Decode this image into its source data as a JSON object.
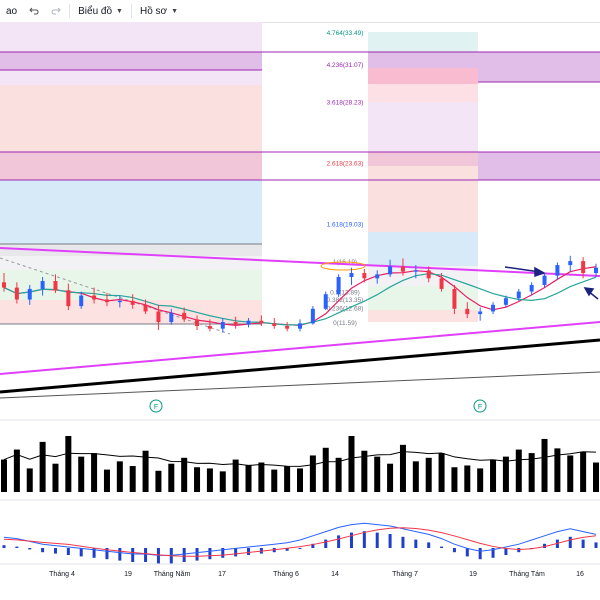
{
  "toolbar": {
    "cut_label": "ao",
    "undo_icon": "undo-icon",
    "redo_icon": "redo-icon",
    "chart_menu_label": "Biểu đồ",
    "profile_menu_label": "Hồ sơ"
  },
  "chart_data": {
    "type": "candlestick",
    "price_ylim": [
      8,
      36
    ],
    "fib_levels_right": [
      {
        "label": "4.764(33.49)",
        "value": 33.49,
        "color": "#089981"
      },
      {
        "label": "4.236(31.07)",
        "value": 31.07,
        "color": "#9c27b0"
      },
      {
        "label": "3.618(28.23)",
        "value": 28.23,
        "color": "#9c27b0"
      },
      {
        "label": "2.618(23.63)",
        "value": 23.63,
        "color": "#f23645"
      },
      {
        "label": "1.618(19.03)",
        "value": 19.03,
        "color": "#2962ff"
      },
      {
        "label": "1(16.19)",
        "value": 16.19,
        "color": "#787b86"
      },
      {
        "label": "0.5(13.89)",
        "value": 13.89,
        "color": "#787b86"
      },
      {
        "label": "0.382(13.35)",
        "value": 13.35,
        "color": "#787b86"
      },
      {
        "label": "0.236(12.68)",
        "value": 12.68,
        "color": "#787b86"
      },
      {
        "label": "0(11.59)",
        "value": 11.59,
        "color": "#787b86"
      }
    ],
    "x_ticks": [
      "Tháng 4",
      "19",
      "Tháng Năm",
      "17",
      "Tháng 6",
      "14",
      "Tháng 7",
      "19",
      "Tháng Tám",
      "16"
    ],
    "event_markers": [
      "F",
      "F"
    ],
    "candles": [
      {
        "o": 14.6,
        "h": 15.3,
        "l": 13.9,
        "c": 14.2
      },
      {
        "o": 14.2,
        "h": 14.6,
        "l": 13.0,
        "c": 13.3
      },
      {
        "o": 13.3,
        "h": 14.4,
        "l": 12.9,
        "c": 14.1
      },
      {
        "o": 14.1,
        "h": 15.0,
        "l": 13.6,
        "c": 14.7
      },
      {
        "o": 14.7,
        "h": 15.2,
        "l": 13.8,
        "c": 14.0
      },
      {
        "o": 14.0,
        "h": 14.5,
        "l": 12.5,
        "c": 12.8
      },
      {
        "o": 12.8,
        "h": 13.9,
        "l": 12.6,
        "c": 13.6
      },
      {
        "o": 13.6,
        "h": 14.2,
        "l": 13.0,
        "c": 13.3
      },
      {
        "o": 13.3,
        "h": 13.8,
        "l": 12.8,
        "c": 13.1
      },
      {
        "o": 13.1,
        "h": 13.6,
        "l": 12.7,
        "c": 13.2
      },
      {
        "o": 13.2,
        "h": 13.7,
        "l": 12.6,
        "c": 12.9
      },
      {
        "o": 12.9,
        "h": 13.3,
        "l": 12.2,
        "c": 12.4
      },
      {
        "o": 12.4,
        "h": 12.9,
        "l": 11.0,
        "c": 11.6
      },
      {
        "o": 11.6,
        "h": 12.6,
        "l": 11.4,
        "c": 12.3
      },
      {
        "o": 12.3,
        "h": 12.7,
        "l": 11.6,
        "c": 11.8
      },
      {
        "o": 11.8,
        "h": 12.1,
        "l": 11.0,
        "c": 11.3
      },
      {
        "o": 11.3,
        "h": 11.8,
        "l": 10.9,
        "c": 11.1
      },
      {
        "o": 11.1,
        "h": 11.9,
        "l": 10.8,
        "c": 11.6
      },
      {
        "o": 11.6,
        "h": 12.0,
        "l": 11.1,
        "c": 11.4
      },
      {
        "o": 11.4,
        "h": 11.9,
        "l": 11.2,
        "c": 11.7
      },
      {
        "o": 11.7,
        "h": 12.1,
        "l": 11.3,
        "c": 11.5
      },
      {
        "o": 11.5,
        "h": 11.9,
        "l": 11.1,
        "c": 11.3
      },
      {
        "o": 11.3,
        "h": 11.6,
        "l": 10.9,
        "c": 11.1
      },
      {
        "o": 11.1,
        "h": 11.8,
        "l": 10.9,
        "c": 11.5
      },
      {
        "o": 11.5,
        "h": 12.8,
        "l": 11.4,
        "c": 12.6
      },
      {
        "o": 12.6,
        "h": 13.9,
        "l": 12.5,
        "c": 13.7
      },
      {
        "o": 13.7,
        "h": 15.2,
        "l": 13.5,
        "c": 15.0
      },
      {
        "o": 15.0,
        "h": 15.7,
        "l": 14.4,
        "c": 15.3
      },
      {
        "o": 15.3,
        "h": 15.6,
        "l": 14.6,
        "c": 14.9
      },
      {
        "o": 14.9,
        "h": 15.5,
        "l": 14.5,
        "c": 15.2
      },
      {
        "o": 15.2,
        "h": 16.3,
        "l": 15.0,
        "c": 15.8
      },
      {
        "o": 15.8,
        "h": 16.4,
        "l": 15.1,
        "c": 15.4
      },
      {
        "o": 15.4,
        "h": 15.9,
        "l": 14.9,
        "c": 15.5
      },
      {
        "o": 15.5,
        "h": 15.8,
        "l": 14.6,
        "c": 14.9
      },
      {
        "o": 14.9,
        "h": 15.3,
        "l": 13.9,
        "c": 14.1
      },
      {
        "o": 14.1,
        "h": 14.4,
        "l": 12.2,
        "c": 12.6
      },
      {
        "o": 12.6,
        "h": 13.1,
        "l": 11.9,
        "c": 12.2
      },
      {
        "o": 12.2,
        "h": 12.7,
        "l": 11.7,
        "c": 12.4
      },
      {
        "o": 12.4,
        "h": 13.1,
        "l": 12.2,
        "c": 12.9
      },
      {
        "o": 12.9,
        "h": 13.6,
        "l": 12.7,
        "c": 13.4
      },
      {
        "o": 13.4,
        "h": 14.1,
        "l": 13.2,
        "c": 13.9
      },
      {
        "o": 13.9,
        "h": 14.6,
        "l": 13.6,
        "c": 14.4
      },
      {
        "o": 14.4,
        "h": 15.3,
        "l": 14.2,
        "c": 15.1
      },
      {
        "o": 15.1,
        "h": 16.1,
        "l": 14.8,
        "c": 15.9
      },
      {
        "o": 15.9,
        "h": 16.6,
        "l": 15.4,
        "c": 16.2
      },
      {
        "o": 16.2,
        "h": 16.5,
        "l": 14.9,
        "c": 15.3
      },
      {
        "o": 15.3,
        "h": 16.0,
        "l": 15.0,
        "c": 15.7
      }
    ],
    "volume": [
      55,
      72,
      40,
      85,
      48,
      95,
      60,
      66,
      38,
      52,
      44,
      70,
      36,
      48,
      58,
      42,
      40,
      35,
      55,
      46,
      50,
      38,
      44,
      40,
      62,
      75,
      58,
      95,
      70,
      60,
      48,
      80,
      52,
      58,
      66,
      42,
      45,
      40,
      55,
      60,
      72,
      66,
      90,
      74,
      62,
      68,
      50
    ],
    "macd": [
      0.2,
      0.1,
      -0.1,
      -0.3,
      -0.4,
      -0.5,
      -0.6,
      -0.7,
      -0.8,
      -0.9,
      -1.0,
      -1.0,
      -1.1,
      -1.1,
      -1.0,
      -0.9,
      -0.8,
      -0.7,
      -0.6,
      -0.5,
      -0.4,
      -0.3,
      -0.2,
      0.0,
      0.3,
      0.6,
      0.9,
      1.1,
      1.2,
      1.1,
      1.0,
      0.8,
      0.6,
      0.4,
      0.1,
      -0.3,
      -0.6,
      -0.8,
      -0.7,
      -0.5,
      -0.3,
      0.0,
      0.3,
      0.6,
      0.8,
      0.6,
      0.4
    ]
  }
}
